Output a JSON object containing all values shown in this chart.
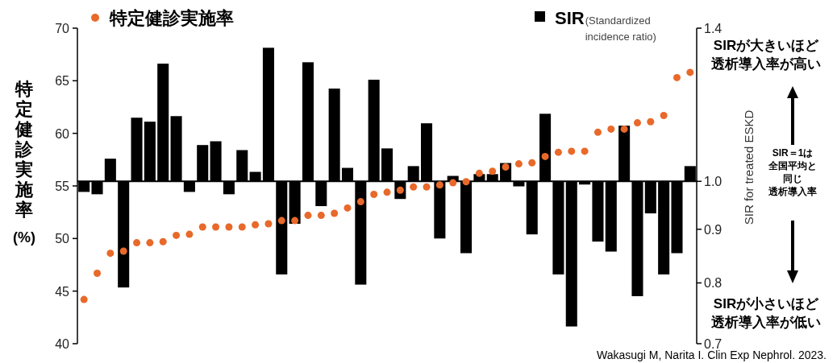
{
  "chart_data": {
    "type": "bar",
    "legend": "top",
    "marker": "circle",
    "grid": false,
    "categories": [
      null,
      null,
      null,
      null,
      null,
      null,
      null,
      null,
      null,
      null,
      null,
      null,
      null,
      null,
      null,
      null,
      null,
      null,
      null,
      null,
      null,
      null,
      null,
      null,
      null,
      null,
      null,
      null,
      null,
      null,
      null,
      null,
      null,
      null,
      null,
      null,
      null,
      null,
      null,
      null,
      null,
      null,
      null,
      null,
      null,
      null,
      null
    ],
    "ylabel": "特定健診実施率 (%)",
    "y2label": "SIR for treated ESKD",
    "ylim": [
      40,
      70
    ],
    "yticks": [
      40,
      45,
      50,
      55,
      60,
      65,
      70
    ],
    "y2lim": [
      0.7,
      1.4
    ],
    "y2ticks": [
      0.7,
      0.8,
      0.9,
      {
        "value": 1,
        "label": "1.0"
      },
      1.4
    ],
    "log": "y2",
    "ref_lines": [
      {
        "axis": "y2",
        "value": 1,
        "color": "#000000"
      }
    ],
    "series": [
      {
        "name": "特定健診実施率",
        "type": "scatter",
        "color": "#e8692a",
        "values": [
          44.2,
          46.7,
          48.6,
          48.8,
          49.6,
          49.6,
          49.7,
          50.3,
          50.4,
          51.1,
          51.1,
          51.1,
          51.1,
          51.3,
          51.4,
          51.7,
          51.7,
          52.2,
          52.2,
          52.4,
          52.9,
          53.5,
          54.2,
          54.4,
          54.6,
          54.9,
          54.9,
          55.1,
          55.3,
          55.4,
          56.2,
          56.4,
          56.8,
          57.1,
          57.2,
          57.8,
          58.2,
          58.3,
          58.3,
          60.1,
          60.4,
          60.4,
          61.0,
          61.1,
          61.7,
          65.3,
          65.8
        ]
      },
      {
        "name": "SIR(Standardized incidence ratio)",
        "type": "bar",
        "axis": "y2",
        "color": "#000000",
        "base": [
          1,
          1,
          1,
          1,
          1,
          1,
          1,
          1,
          1,
          1,
          1,
          1,
          1,
          1,
          1,
          1,
          1,
          1,
          1,
          1,
          1,
          1,
          1,
          1,
          1,
          1,
          1,
          1,
          1,
          1,
          1,
          1,
          1,
          1,
          1,
          1,
          1,
          1,
          1,
          1,
          1,
          1,
          1,
          1,
          1,
          1,
          1
        ],
        "values": [
          -0.023,
          -0.028,
          0.051,
          -0.208,
          0.15,
          0.14,
          0.295,
          0.154,
          -0.023,
          0.083,
          0.092,
          -0.028,
          0.071,
          0.021,
          0.341,
          -0.185,
          -0.089,
          0.299,
          -0.053,
          0.226,
          0.03,
          -0.203,
          0.25,
          0.075,
          -0.038,
          0.034,
          0.136,
          -0.118,
          0.012,
          -0.146,
          0.016,
          0.016,
          0.041,
          -0.011,
          -0.11,
          0.16,
          -0.185,
          -0.273,
          -0.007,
          -0.124,
          -0.143,
          0.13,
          -0.223,
          -0.068,
          -0.185,
          -0.146,
          0.034
        ]
      }
    ],
    "annotations": [
      "SIRが大きいほど",
      "透析導入率が高い",
      "SIR＝1は",
      "全国平均と",
      "同じ",
      "透析導入率",
      "SIRが小さいほど",
      "透析導入率が低い",
      "Wakasugi M, Narita I. Clin Exp Nephrol. 2023."
    ]
  }
}
